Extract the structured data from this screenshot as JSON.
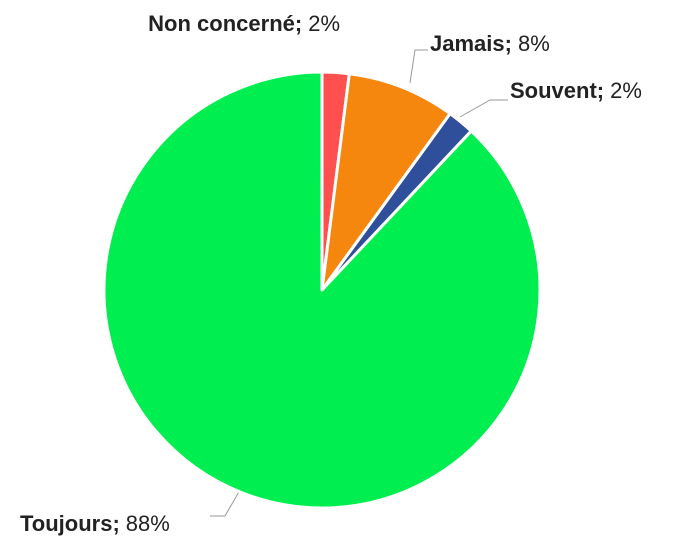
{
  "chart_data": {
    "type": "pie",
    "categories": [
      "Non concerné",
      "Jamais",
      "Souvent",
      "Toujours"
    ],
    "values": [
      2,
      8,
      2,
      88
    ],
    "value_labels": [
      "2%",
      "8%",
      "2%",
      "88%"
    ],
    "separator": ";",
    "colors": [
      "#ff5050",
      "#f5870f",
      "#2f4f9b",
      "#00ee4f"
    ]
  }
}
